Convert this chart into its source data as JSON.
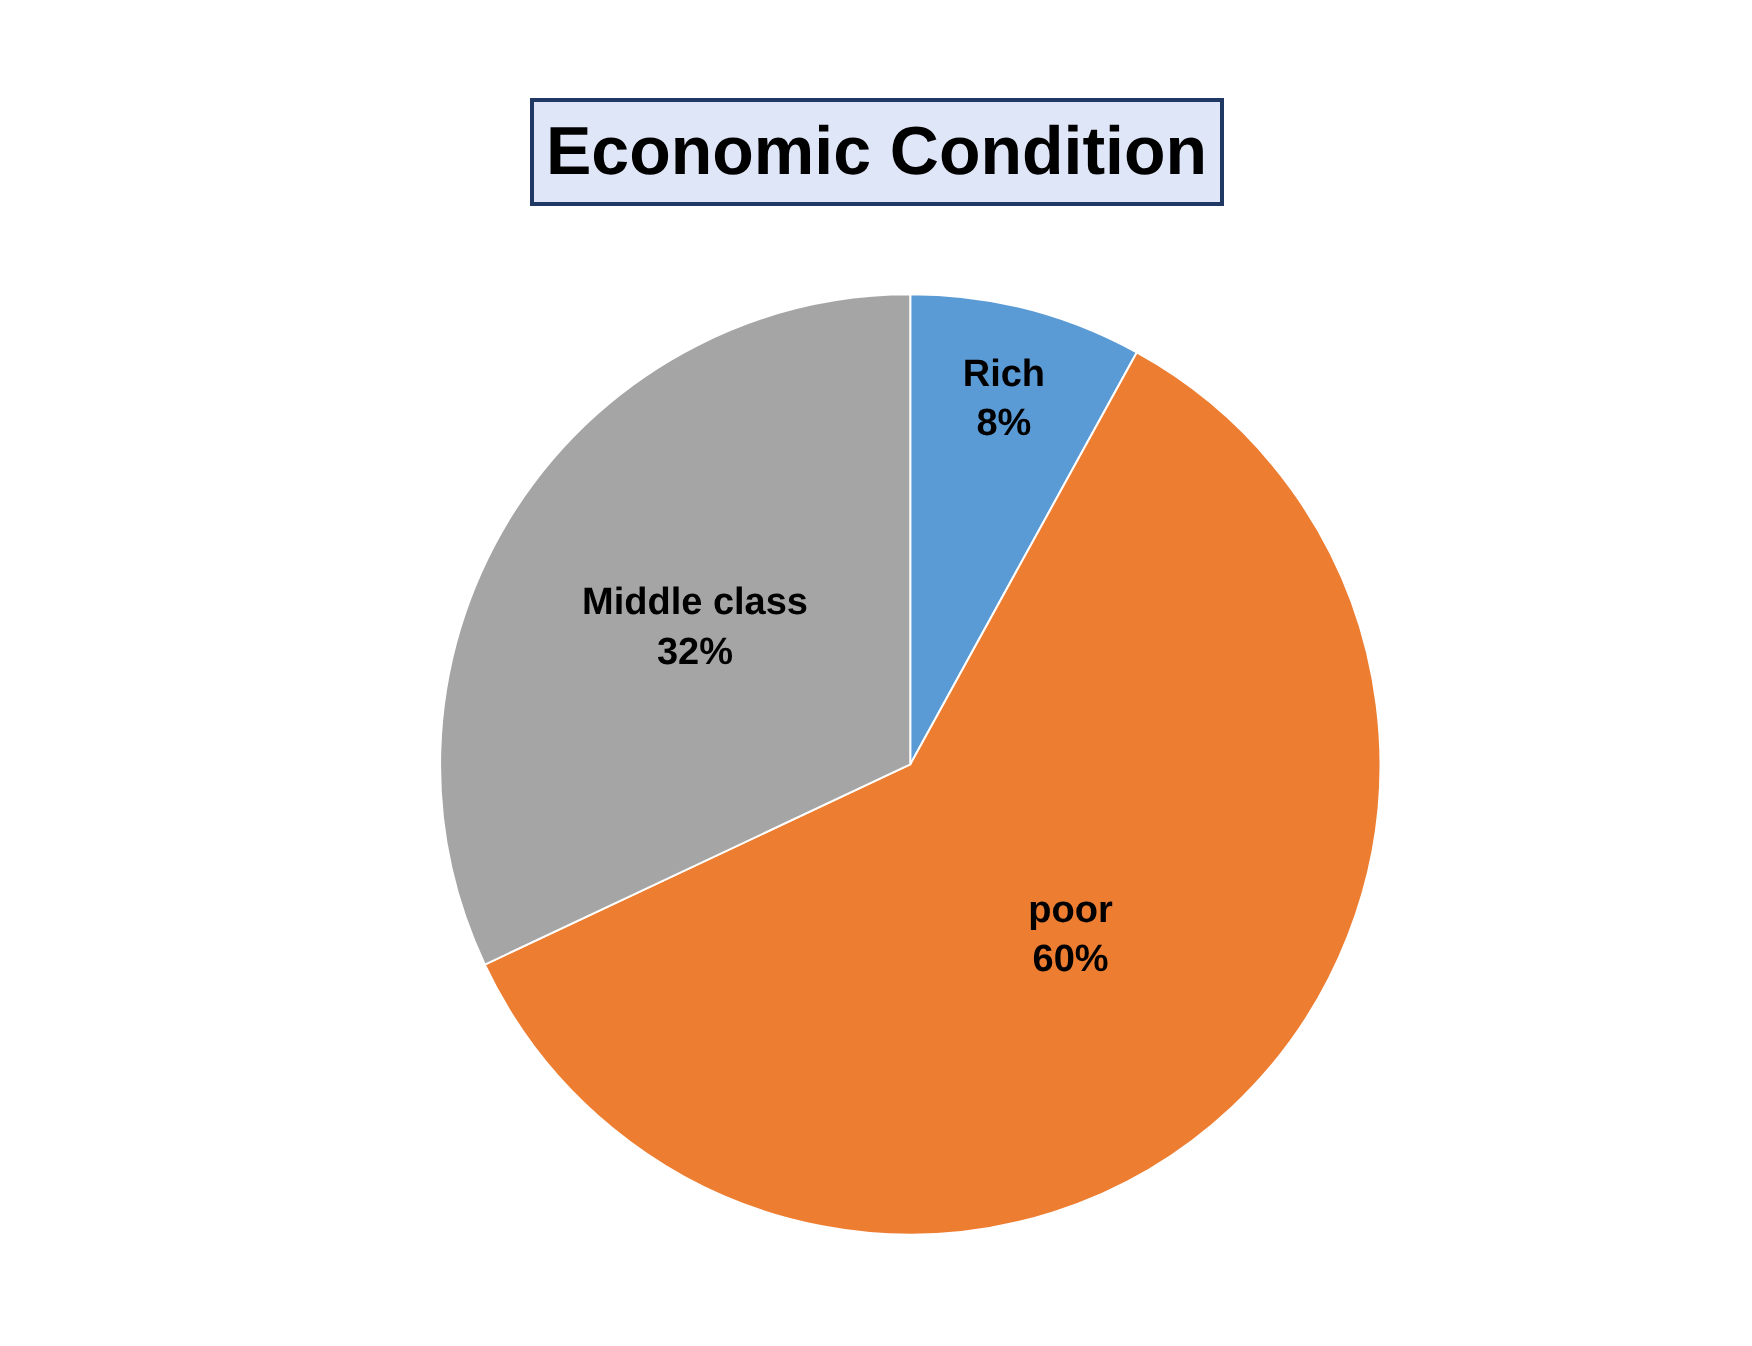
{
  "chart_data": {
    "type": "pie",
    "title": "Economic Condition",
    "categories": [
      "Rich",
      "poor",
      "Middle class"
    ],
    "values": [
      8,
      60,
      32
    ],
    "value_labels": [
      "8%",
      "60%",
      "32%"
    ],
    "colors": [
      "#5b9bd5",
      "#ed7d31",
      "#a5a5a5"
    ]
  }
}
